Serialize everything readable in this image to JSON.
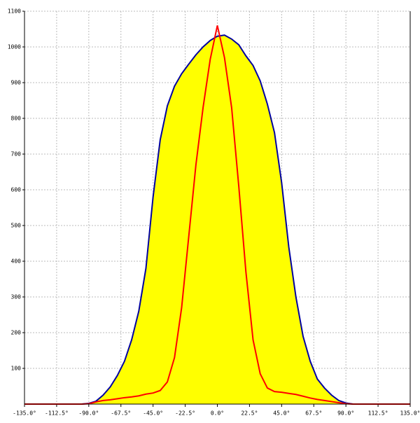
{
  "chart_data": {
    "type": "area",
    "x": [
      -135,
      -130,
      -125,
      -120,
      -115,
      -110,
      -105,
      -100,
      -95,
      -90,
      -85,
      -80,
      -75,
      -70,
      -65,
      -60,
      -55,
      -50,
      -45,
      -40,
      -35,
      -30,
      -25,
      -20,
      -15,
      -10,
      -5,
      0,
      5,
      10,
      15,
      20,
      25,
      30,
      35,
      40,
      45,
      50,
      55,
      60,
      65,
      70,
      75,
      80,
      85,
      90,
      95,
      100,
      105,
      110,
      115,
      120,
      125,
      130,
      135
    ],
    "series": [
      {
        "color": "#0000a0",
        "fill": "#ffff00",
        "values": [
          0,
          0,
          0,
          0,
          0,
          0,
          0,
          0,
          0,
          2,
          8,
          25,
          48,
          80,
          120,
          180,
          260,
          380,
          580,
          740,
          835,
          890,
          925,
          952,
          978,
          1000,
          1018,
          1030,
          1033,
          1022,
          1006,
          975,
          948,
          905,
          840,
          760,
          620,
          440,
          300,
          190,
          120,
          70,
          45,
          25,
          10,
          3,
          0,
          0,
          0,
          0,
          0,
          0,
          0,
          0,
          0
        ]
      },
      {
        "color": "#ff0000",
        "values": [
          0,
          0,
          0,
          0,
          0,
          0,
          0,
          0,
          0,
          1,
          6,
          10,
          12,
          15,
          18,
          20,
          23,
          28,
          31,
          38,
          62,
          130,
          270,
          470,
          670,
          830,
          965,
          1060,
          970,
          830,
          610,
          370,
          180,
          85,
          45,
          35,
          33,
          30,
          27,
          22,
          17,
          13,
          10,
          7,
          4,
          1,
          0,
          0,
          0,
          0,
          0,
          0,
          0,
          0,
          0
        ]
      }
    ],
    "xlim": [
      -135,
      135
    ],
    "ylim": [
      0,
      1100
    ],
    "xticks": [
      {
        "value": -135,
        "label": "-135.0°"
      },
      {
        "value": -112.5,
        "label": "-112.5°"
      },
      {
        "value": -90,
        "label": "-90.0°"
      },
      {
        "value": -67.5,
        "label": "-67.5°"
      },
      {
        "value": -45,
        "label": "-45.0°"
      },
      {
        "value": -22.5,
        "label": "-22.5°"
      },
      {
        "value": 0,
        "label": "0.0°"
      },
      {
        "value": 22.5,
        "label": "22.5°"
      },
      {
        "value": 45,
        "label": "45.0°"
      },
      {
        "value": 67.5,
        "label": "67.5°"
      },
      {
        "value": 90,
        "label": "90.0°"
      },
      {
        "value": 112.5,
        "label": "112.5°"
      },
      {
        "value": 135,
        "label": "135.0°"
      }
    ],
    "yticks": [
      100,
      200,
      300,
      400,
      500,
      600,
      700,
      800,
      900,
      1000,
      1100
    ],
    "grid": true
  }
}
